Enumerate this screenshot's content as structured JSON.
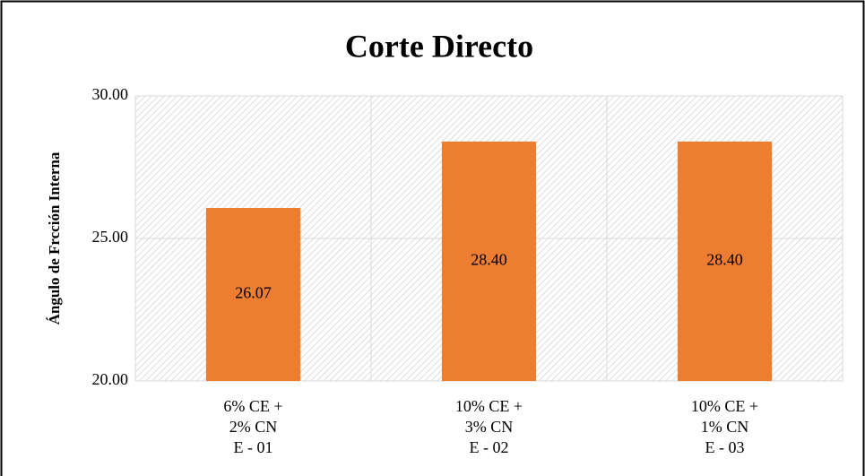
{
  "chart_data": {
    "type": "bar",
    "title": "Corte Directo",
    "ylabel": "Ángulo de Frcción Interna",
    "categories": [
      [
        "6% CE +",
        "2% CN",
        "E - 01"
      ],
      [
        "10% CE +",
        "3% CN",
        "E - 02"
      ],
      [
        "10% CE +",
        "1% CN",
        "E - 03"
      ]
    ],
    "values": [
      26.07,
      28.4,
      28.4
    ],
    "value_labels": [
      "26.07",
      "28.40",
      "28.40"
    ],
    "color": "#ed7d31",
    "ylim": [
      20,
      30
    ],
    "yticks": [
      {
        "value": 20,
        "label": "20.00"
      },
      {
        "value": 25,
        "label": "25.00"
      },
      {
        "value": 30,
        "label": "30.00"
      }
    ],
    "grid": true
  }
}
